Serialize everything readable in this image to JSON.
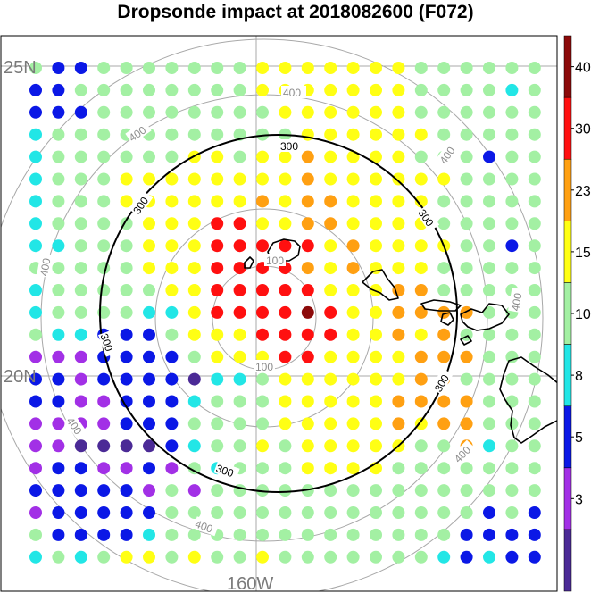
{
  "title": "Dropsonde impact at 2018082600 (F072)",
  "map": {
    "lat_labels": [
      "25N",
      "20N"
    ],
    "lon_labels": [
      "160W"
    ],
    "range_ring_labels": [
      "100",
      "300",
      "400"
    ]
  },
  "colorbar": {
    "tick_labels": [
      "3",
      "5",
      "8",
      "10",
      "15",
      "23",
      "30",
      "40"
    ],
    "colors": [
      "#4b2a96",
      "#a230e6",
      "#0b18e6",
      "#22e6e6",
      "#a3f0a3",
      "#ffff14",
      "#ffa012",
      "#ff1010",
      "#8c0a0a"
    ]
  },
  "grid_colors": {
    "V": "#4b2a96",
    "P": "#a230e6",
    "B": "#0b18e6",
    "C": "#22e6e6",
    "G": "#a3f0a3",
    "Y": "#ffff14",
    "O": "#ffa012",
    "R": "#ff1010",
    "D": "#8c0a0a"
  },
  "dot_grid": [
    "GBBGGGGGGGYYYYYYYGGGGGG",
    "BBGGGGGGGGYYYYYYYGGGGCG",
    "BBBGGGGGGGGYYYYYYGGGGGG",
    "CGGGGGGGGGGGYYYYYYGGGGG",
    "CGGGGGGYYGYYOYYYYGGGBGG",
    "CGGGYYYYYYYYOYYYYYYGGGG",
    "CGGGYYYYYYOYOOYYYYGGGGG",
    "CGGGGYYYRRYYOOYYYYGGGGG",
    "CCGGGYYYRRRRRYOYYYYGGBG",
    "GGGGGYYYRRRROYOYYYGGGGG",
    "CGGGGGYYRRRRRYYYOOGGGGG",
    "CGGGGCCYRRRRDRYYOOOOGGG",
    "GCCBBBGYYYRRRRYYOYOGGGG",
    "PPPBBBBGYYYRRYYYYOOOGGG",
    "BBPBBBBVCCGYYYYYYOOGGGG",
    "BBPPBBBCGGGYYYYYOOOOGGG",
    "PPPPBBBGGGGYYYYYOYOOGGG",
    "PPVVVVBCGGYGYYYYYGGOCGG",
    "PBBPPBPGCGGGYYYYGGGGGGG",
    "BBBBBPGPGGGGGGGGGGGGGGG",
    "PBBBBBGGGGGGGGGGGGGGBGB",
    "GBBBBCGGGGGGGGGGGGGBBBB",
    "CGCGYYGYGGYGGGGGGGCBCBB"
  ]
}
